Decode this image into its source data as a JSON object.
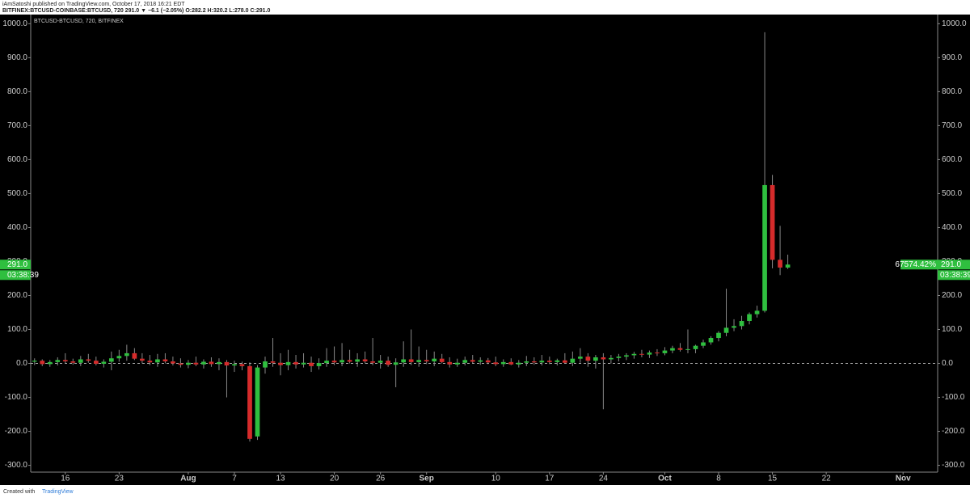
{
  "header": {
    "publisher": "iAmSatoshi published on TradingView.com, October 17, 2018 16:21 EDT",
    "symbol_line": "BITFINEX:BTCUSD-COINBASE:BTCUSD, 720 291.0 ▼ −6.1 (−2.05%) O:282.2 H:320.2 L:278.0 C:291.0"
  },
  "footer": {
    "created": "Created with",
    "brand": "TradingView"
  },
  "chart_data": {
    "type": "candlestick",
    "title": "BTCUSD-BTCUSD, 720, BITFINEX",
    "up_color": "#2fbf3f",
    "down_color": "#d52b2b",
    "ylim": [
      -320,
      1027
    ],
    "yticks": [
      {
        "value": -300,
        "label": "-300.0"
      },
      {
        "value": -200,
        "label": "-200.0"
      },
      {
        "value": -100,
        "label": "-100.0"
      },
      {
        "value": 0,
        "label": "0.0"
      },
      {
        "value": 100,
        "label": "100.0"
      },
      {
        "value": 200,
        "label": "200.0"
      },
      {
        "value": 300,
        "label": "300.0"
      },
      {
        "value": 400,
        "label": "400.0"
      },
      {
        "value": 500,
        "label": "500.0"
      },
      {
        "value": 600,
        "label": "600.0"
      },
      {
        "value": 700,
        "label": "700.0"
      },
      {
        "value": 800,
        "label": "800.0"
      },
      {
        "value": 900,
        "label": "900.0"
      },
      {
        "value": 1000,
        "label": "1000.0"
      }
    ],
    "zero_line": 0,
    "last_price": {
      "value": 291,
      "label": "291.0"
    },
    "change_percent": {
      "value": 67574.42,
      "label": "67574.42%"
    },
    "countdown": "03:38:39",
    "categories": [
      null,
      null,
      null,
      null,
      "16",
      null,
      null,
      null,
      null,
      null,
      null,
      "23",
      null,
      null,
      null,
      null,
      null,
      null,
      null,
      null,
      "Aug",
      null,
      null,
      null,
      null,
      null,
      "7",
      null,
      null,
      null,
      null,
      null,
      "13",
      null,
      null,
      null,
      null,
      null,
      null,
      "20",
      null,
      null,
      null,
      null,
      null,
      "26",
      null,
      null,
      null,
      null,
      null,
      "Sep",
      null,
      null,
      null,
      null,
      null,
      null,
      null,
      null,
      "10",
      null,
      null,
      null,
      null,
      null,
      null,
      "17",
      null,
      null,
      null,
      null,
      null,
      null,
      "24",
      null,
      null,
      null,
      null,
      null,
      null,
      null,
      "Oct",
      null,
      null,
      null,
      null,
      null,
      null,
      "8",
      null,
      null,
      null,
      null,
      null,
      null,
      "15",
      null,
      null,
      null,
      null,
      null,
      null,
      "22",
      null,
      null,
      null,
      null,
      null,
      null,
      null,
      null,
      null,
      "Nov",
      null,
      null,
      null,
      null
    ],
    "candles": [
      [
        5,
        15,
        -5,
        8
      ],
      [
        8,
        12,
        -8,
        -2
      ],
      [
        -2,
        10,
        -10,
        4
      ],
      [
        4,
        18,
        -6,
        10
      ],
      [
        10,
        30,
        0,
        6
      ],
      [
        6,
        14,
        -4,
        2
      ],
      [
        2,
        22,
        -8,
        12
      ],
      [
        12,
        28,
        2,
        8
      ],
      [
        8,
        20,
        -6,
        -1
      ],
      [
        -1,
        12,
        -12,
        5
      ],
      [
        5,
        35,
        -20,
        15
      ],
      [
        15,
        40,
        5,
        22
      ],
      [
        22,
        55,
        8,
        30
      ],
      [
        30,
        45,
        10,
        14
      ],
      [
        14,
        30,
        0,
        8
      ],
      [
        8,
        25,
        -5,
        3
      ],
      [
        3,
        28,
        -10,
        12
      ],
      [
        12,
        30,
        0,
        6
      ],
      [
        6,
        20,
        -6,
        0
      ],
      [
        0,
        15,
        -12,
        -4
      ],
      [
        -4,
        10,
        -14,
        2
      ],
      [
        2,
        20,
        -8,
        -3
      ],
      [
        -3,
        12,
        -15,
        5
      ],
      [
        5,
        18,
        -10,
        -2
      ],
      [
        -2,
        15,
        -20,
        4
      ],
      [
        4,
        10,
        -100,
        -6
      ],
      [
        -6,
        8,
        -25,
        -2
      ],
      [
        -2,
        5,
        -20,
        -8
      ],
      [
        -8,
        3,
        -230,
        -222
      ],
      [
        -215,
        -5,
        -225,
        -12
      ],
      [
        -12,
        20,
        -30,
        6
      ],
      [
        6,
        75,
        -10,
        2
      ],
      [
        2,
        30,
        -35,
        -5
      ],
      [
        -5,
        40,
        -20,
        4
      ],
      [
        4,
        25,
        -15,
        -3
      ],
      [
        -3,
        30,
        -12,
        2
      ],
      [
        2,
        20,
        -25,
        -8
      ],
      [
        -8,
        15,
        -18,
        1
      ],
      [
        1,
        45,
        -10,
        8
      ],
      [
        8,
        50,
        -5,
        3
      ],
      [
        3,
        60,
        -8,
        10
      ],
      [
        10,
        40,
        0,
        5
      ],
      [
        5,
        30,
        -10,
        12
      ],
      [
        12,
        35,
        0,
        6
      ],
      [
        6,
        75,
        -5,
        2
      ],
      [
        2,
        25,
        -15,
        8
      ],
      [
        8,
        20,
        -10,
        -4
      ],
      [
        -4,
        15,
        -70,
        3
      ],
      [
        3,
        65,
        -10,
        12
      ],
      [
        12,
        100,
        -5,
        4
      ],
      [
        4,
        50,
        -10,
        10
      ],
      [
        10,
        40,
        -2,
        6
      ],
      [
        6,
        35,
        -8,
        14
      ],
      [
        14,
        28,
        0,
        4
      ],
      [
        4,
        18,
        -12,
        -3
      ],
      [
        -3,
        14,
        -10,
        2
      ],
      [
        2,
        20,
        -6,
        10
      ],
      [
        10,
        25,
        0,
        5
      ],
      [
        5,
        18,
        -4,
        9
      ],
      [
        9,
        16,
        -2,
        3
      ],
      [
        3,
        20,
        -8,
        -2
      ],
      [
        -2,
        12,
        -10,
        4
      ],
      [
        4,
        15,
        -5,
        -3
      ],
      [
        -3,
        10,
        -12,
        2
      ],
      [
        2,
        22,
        -8,
        6
      ],
      [
        6,
        18,
        -4,
        3
      ],
      [
        3,
        25,
        -6,
        8
      ],
      [
        8,
        20,
        -2,
        4
      ],
      [
        4,
        14,
        -6,
        9
      ],
      [
        9,
        30,
        0,
        2
      ],
      [
        2,
        35,
        -8,
        14
      ],
      [
        14,
        45,
        2,
        20
      ],
      [
        20,
        30,
        -10,
        8
      ],
      [
        8,
        25,
        -15,
        18
      ],
      [
        18,
        30,
        -135,
        12
      ],
      [
        12,
        25,
        0,
        16
      ],
      [
        16,
        28,
        6,
        20
      ],
      [
        20,
        30,
        10,
        24
      ],
      [
        24,
        34,
        14,
        28
      ],
      [
        28,
        40,
        18,
        26
      ],
      [
        26,
        38,
        16,
        32
      ],
      [
        32,
        42,
        22,
        30
      ],
      [
        30,
        48,
        24,
        38
      ],
      [
        38,
        52,
        30,
        45
      ],
      [
        45,
        60,
        35,
        40
      ],
      [
        40,
        100,
        30,
        42
      ],
      [
        42,
        55,
        30,
        52
      ],
      [
        52,
        70,
        45,
        62
      ],
      [
        62,
        80,
        55,
        75
      ],
      [
        75,
        95,
        65,
        90
      ],
      [
        90,
        220,
        80,
        105
      ],
      [
        105,
        130,
        95,
        110
      ],
      [
        110,
        140,
        100,
        125
      ],
      [
        125,
        150,
        115,
        145
      ],
      [
        145,
        170,
        135,
        155
      ],
      [
        155,
        975,
        150,
        525
      ],
      [
        525,
        555,
        280,
        305
      ],
      [
        305,
        405,
        260,
        282.2
      ],
      [
        282.2,
        320.2,
        278,
        291
      ],
      null,
      null,
      null,
      null,
      null,
      null,
      null,
      null,
      null,
      null,
      null,
      null,
      null,
      null,
      null,
      null,
      null,
      null,
      null
    ]
  }
}
